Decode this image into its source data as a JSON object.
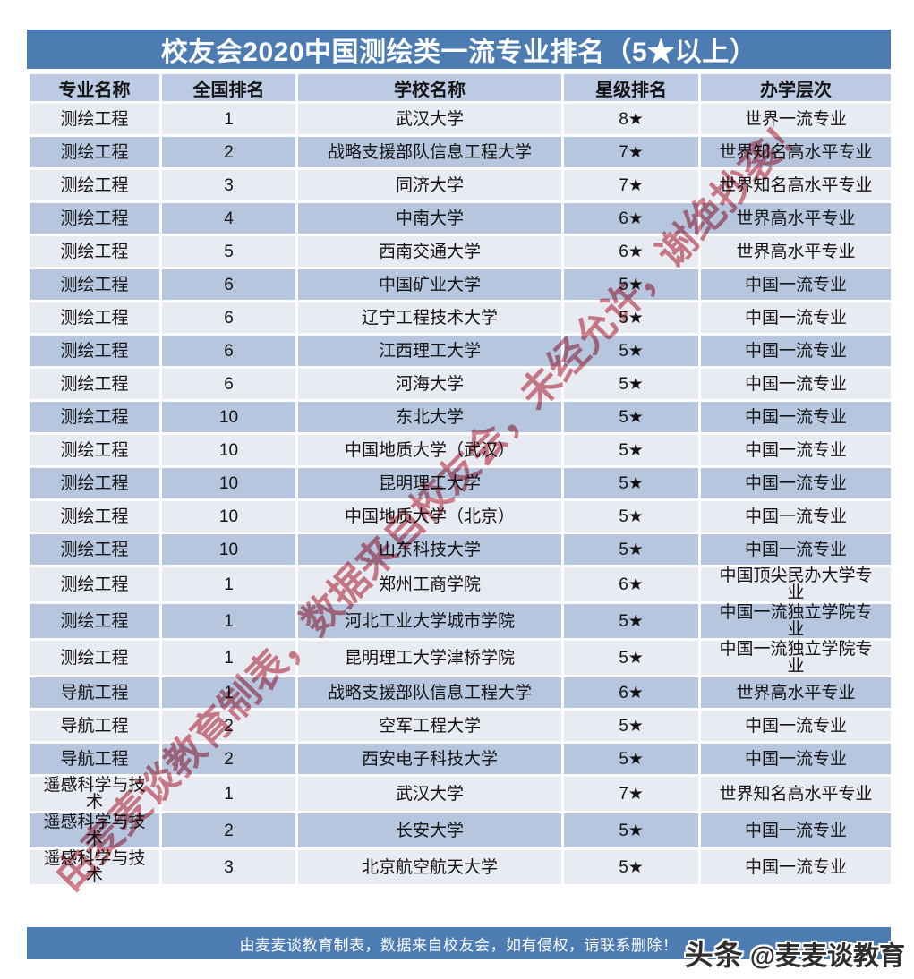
{
  "title": "校友会2020中国测绘类一流专业排名（5★以上）",
  "table": {
    "columns": [
      "专业名称",
      "全国排名",
      "学校名称",
      "星级排名",
      "办学层次"
    ],
    "rows": [
      {
        "major": "测绘工程",
        "rank": "1",
        "school": "武汉大学",
        "stars": "8★",
        "level": "世界一流专业"
      },
      {
        "major": "测绘工程",
        "rank": "2",
        "school": "战略支援部队信息工程大学",
        "stars": "7★",
        "level": "世界知名高水平专业"
      },
      {
        "major": "测绘工程",
        "rank": "3",
        "school": "同济大学",
        "stars": "7★",
        "level": "世界知名高水平专业"
      },
      {
        "major": "测绘工程",
        "rank": "4",
        "school": "中南大学",
        "stars": "6★",
        "level": "世界高水平专业"
      },
      {
        "major": "测绘工程",
        "rank": "5",
        "school": "西南交通大学",
        "stars": "6★",
        "level": "世界高水平专业"
      },
      {
        "major": "测绘工程",
        "rank": "6",
        "school": "中国矿业大学",
        "stars": "5★",
        "level": "中国一流专业"
      },
      {
        "major": "测绘工程",
        "rank": "6",
        "school": "辽宁工程技术大学",
        "stars": "5★",
        "level": "中国一流专业"
      },
      {
        "major": "测绘工程",
        "rank": "6",
        "school": "江西理工大学",
        "stars": "5★",
        "level": "中国一流专业"
      },
      {
        "major": "测绘工程",
        "rank": "6",
        "school": "河海大学",
        "stars": "5★",
        "level": "中国一流专业"
      },
      {
        "major": "测绘工程",
        "rank": "10",
        "school": "东北大学",
        "stars": "5★",
        "level": "中国一流专业"
      },
      {
        "major": "测绘工程",
        "rank": "10",
        "school": "中国地质大学（武汉）",
        "stars": "5★",
        "level": "中国一流专业"
      },
      {
        "major": "测绘工程",
        "rank": "10",
        "school": "昆明理工大学",
        "stars": "5★",
        "level": "中国一流专业"
      },
      {
        "major": "测绘工程",
        "rank": "10",
        "school": "中国地质大学（北京）",
        "stars": "5★",
        "level": "中国一流专业"
      },
      {
        "major": "测绘工程",
        "rank": "10",
        "school": "山东科技大学",
        "stars": "5★",
        "level": "中国一流专业"
      },
      {
        "major": "测绘工程",
        "rank": "1",
        "school": "郑州工商学院",
        "stars": "6★",
        "level": "中国顶尖民办大学专业"
      },
      {
        "major": "测绘工程",
        "rank": "1",
        "school": "河北工业大学城市学院",
        "stars": "5★",
        "level": "中国一流独立学院专业"
      },
      {
        "major": "测绘工程",
        "rank": "1",
        "school": "昆明理工大学津桥学院",
        "stars": "5★",
        "level": "中国一流独立学院专业"
      },
      {
        "major": "导航工程",
        "rank": "1",
        "school": "战略支援部队信息工程大学",
        "stars": "6★",
        "level": "世界高水平专业"
      },
      {
        "major": "导航工程",
        "rank": "2",
        "school": "空军工程大学",
        "stars": "5★",
        "level": "中国一流专业"
      },
      {
        "major": "导航工程",
        "rank": "2",
        "school": "西安电子科技大学",
        "stars": "5★",
        "level": "中国一流专业"
      },
      {
        "major": "遥感科学与技术",
        "rank": "1",
        "school": "武汉大学",
        "stars": "7★",
        "level": "世界知名高水平专业"
      },
      {
        "major": "遥感科学与技术",
        "rank": "2",
        "school": "长安大学",
        "stars": "5★",
        "level": "中国一流专业"
      },
      {
        "major": "遥感科学与技术",
        "rank": "3",
        "school": "北京航空航天大学",
        "stars": "5★",
        "level": "中国一流专业"
      }
    ]
  },
  "footer": {
    "note": "由麦麦谈教育制表，数据来自校友会，如有侵权，请联系删除！",
    "brand": "头条",
    "handle": "@麦麦谈教育"
  },
  "watermark": "由麦麦谈教育制表，数据来自校友会，未经允许，谢绝抄袭！",
  "colors": {
    "bar_blue": "#4c7cb2",
    "header_bg": "#bccbe3",
    "row_light": "#e8ebf2",
    "row_dark": "#b7c6df",
    "text_dark": "#141414",
    "watermark_red": "#d4727e",
    "brand_text": "#2f2f2f"
  }
}
